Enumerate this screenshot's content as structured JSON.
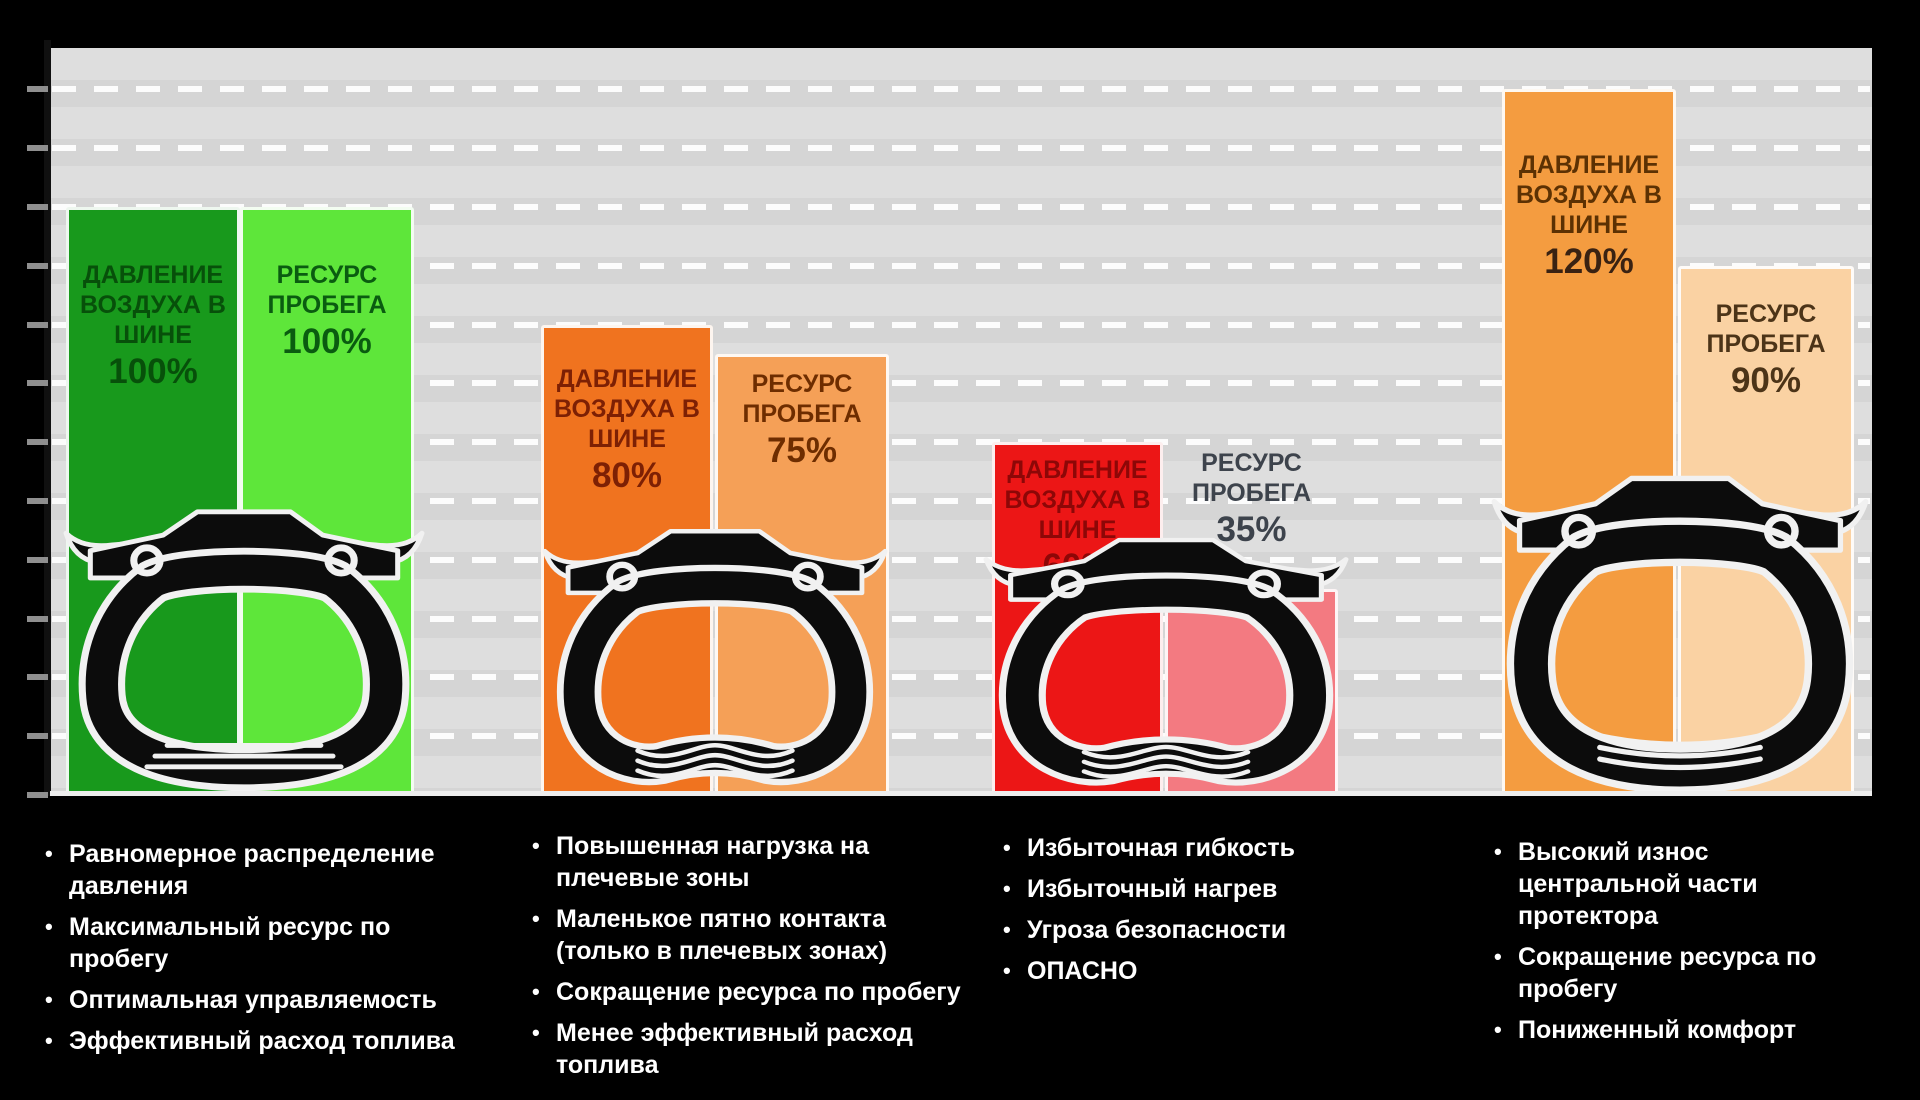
{
  "ui": {
    "bullet": "•"
  },
  "chart_data": {
    "type": "bar",
    "title": "",
    "unit": "%",
    "y_axis": {
      "min": 0,
      "max": 120,
      "step": 10,
      "gridlines": "dashed",
      "axis_side": "left"
    },
    "series": [
      "ДАВЛЕНИЕ ВОЗДУХА В ШИНЕ",
      "РЕСУРС ПРОБЕГА"
    ],
    "colors": {
      "background": "#000000",
      "plot_background": "#dbdbdb",
      "gridline": "#ffffff",
      "tire_body": "#0c0c0c",
      "tire_outline": "#f1f1f1",
      "notes_text": "#ffffff"
    },
    "groups": [
      {
        "id": "pressure-100",
        "pressure": {
          "label": "ДАВЛЕНИЕ\nВОЗДУХА В\nШИНЕ",
          "value": 100,
          "value_label": "100%",
          "color": "#18991c"
        },
        "mileage": {
          "label": "РЕСУРС\nПРОБЕГА",
          "value": 100,
          "value_label": "100%",
          "color": "#5ee63a"
        },
        "notes": [
          "Равномерное распределение\nдавления",
          "Максимальный ресурс по\nпробегу",
          "Оптимальная управляемость",
          "Эффективный расход топлива"
        ]
      },
      {
        "id": "pressure-80",
        "pressure": {
          "label": "ДАВЛЕНИЕ\nВОЗДУХА В\nШИНЕ",
          "value": 80,
          "value_label": "80%",
          "color": "#f0731f"
        },
        "mileage": {
          "label": "РЕСУРС\nПРОБЕГА",
          "value": 75,
          "value_label": "75%",
          "color": "#f5a057"
        },
        "notes": [
          "Повышенная нагрузка на\nплечевые зоны",
          "Маленькое пятно контакта\n(только в плечевых зонах)",
          "Сокращение ресурса по пробегу",
          "Менее эффективный расход\nтоплива"
        ]
      },
      {
        "id": "pressure-60",
        "pressure": {
          "label": "ДАВЛЕНИЕ\nВОЗДУХА В\nШИНЕ",
          "value": 60,
          "value_label": "60%",
          "color": "#ec1616"
        },
        "mileage": {
          "label": "РЕСУРС\nПРОБЕГА",
          "value": 35,
          "value_label": "35%",
          "color": "#f37a81"
        },
        "notes": [
          "Избыточная гибкость",
          "Избыточный нагрев",
          "Угроза безопасности",
          "ОПАСНО"
        ]
      },
      {
        "id": "pressure-120",
        "pressure": {
          "label": "ДАВЛЕНИЕ\nВОЗДУХА В\nШИНЕ",
          "value": 120,
          "value_label": "120%",
          "color": "#f49c40"
        },
        "mileage": {
          "label": "РЕСУРС\nПРОБЕГА",
          "value": 90,
          "value_label": "90%",
          "color": "#fad2a3"
        },
        "notes": [
          "Высокий износ\nцентральной части\nпротектора",
          "Сокращение ресурса по\nпробегу",
          "Пониженный комфорт"
        ]
      }
    ]
  }
}
